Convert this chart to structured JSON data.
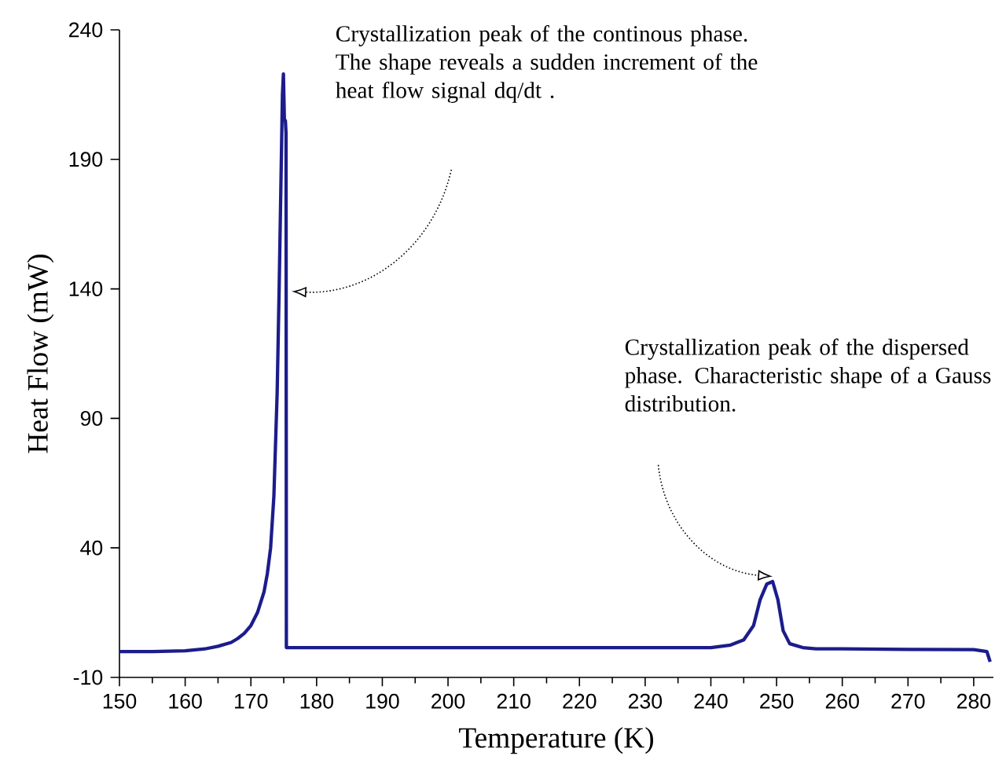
{
  "chart_data": {
    "type": "line",
    "xlabel": "Temperature   (K)",
    "ylabel": "Heat Flow   (mW)",
    "xlim": [
      150,
      283
    ],
    "xticks": [
      150,
      160,
      170,
      180,
      190,
      200,
      210,
      220,
      230,
      240,
      250,
      260,
      270,
      280
    ],
    "ylim": [
      -10,
      240
    ],
    "yticks": [
      -10,
      40,
      90,
      140,
      190,
      240
    ],
    "grid": false,
    "marker": "none",
    "line_style": "solid",
    "series": [
      {
        "color": "#1c1c8c",
        "x": [
          150,
          155,
          160,
          163,
          165,
          167,
          168,
          169,
          170,
          171,
          172,
          172.5,
          173,
          173.5,
          174,
          174.3,
          174.6,
          174.8,
          174.95,
          175.1,
          175.25,
          175.35,
          175.4,
          180,
          200,
          220,
          240,
          243,
          245,
          246.5,
          247.5,
          248.5,
          249.4,
          250.2,
          251,
          252,
          254,
          256,
          260,
          270,
          280,
          282,
          282.5
        ],
        "values": [
          0,
          0,
          0.3,
          1,
          2,
          3.5,
          5,
          7,
          10,
          15,
          23,
          30,
          40,
          60,
          100,
          140,
          185,
          215,
          223,
          205,
          205,
          200,
          1.5,
          1.5,
          1.5,
          1.5,
          1.5,
          2.5,
          4.5,
          10,
          20,
          26,
          27,
          20,
          8,
          3,
          1.5,
          1,
          1,
          0.8,
          0.7,
          0,
          -4
        ]
      }
    ],
    "annotations": [
      "Crystallization peak of the continous phase. The shape reveals a sudden increment of the heat flow signal dq/dt .",
      "Crystallization peak of the dispersed phase. Characteristic  shape of a Gauss distribution."
    ]
  }
}
